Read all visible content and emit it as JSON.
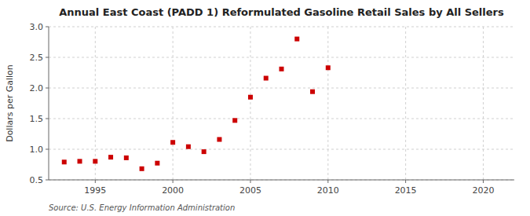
{
  "chart_data": {
    "type": "scatter",
    "title": "Annual East Coast (PADD 1) Reformulated Gasoline Retail Sales by All Sellers",
    "y_label": "Dollars per Gallon",
    "source": "Source: U.S. Energy Information Administration",
    "x": [
      1993,
      1994,
      1995,
      1996,
      1997,
      1998,
      1999,
      2000,
      2001,
      2002,
      2003,
      2004,
      2005,
      2006,
      2007,
      2008,
      2009,
      2010
    ],
    "values": [
      0.791,
      0.803,
      0.803,
      0.87,
      0.86,
      0.682,
      0.773,
      1.112,
      1.042,
      0.96,
      1.16,
      1.47,
      1.85,
      2.16,
      2.31,
      2.8,
      1.94,
      2.33
    ],
    "color": "#cc0000",
    "marker": "square",
    "xlim": [
      1992,
      2022
    ],
    "ylim": [
      0.5,
      3.0
    ],
    "xticks": [
      1995,
      2000,
      2005,
      2010,
      2015,
      2020
    ],
    "yticks": [
      0.5,
      {
        "value": 1.0,
        "label": "1.0"
      },
      1.5,
      {
        "value": 2.0,
        "label": "2.0"
      },
      2.5,
      {
        "value": 3.0,
        "label": "3.0"
      }
    ],
    "grid": true
  }
}
